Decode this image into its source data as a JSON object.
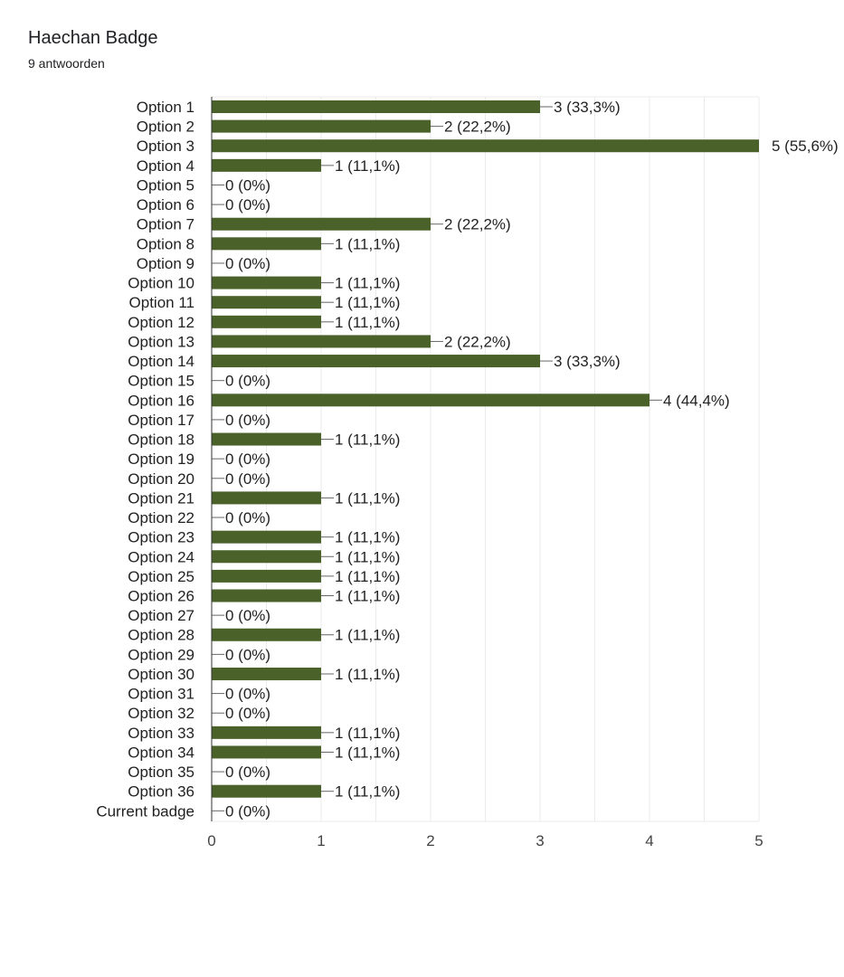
{
  "header": {
    "title": "Haechan Badge",
    "subtitle": "9 antwoorden"
  },
  "chart_data": {
    "type": "bar",
    "orientation": "horizontal",
    "bar_color": "#4a6129",
    "xlim": [
      0,
      5
    ],
    "x_ticks": [
      0,
      1,
      2,
      3,
      4,
      5
    ],
    "grid": true,
    "categories": [
      "Option 1",
      "Option 2",
      "Option 3",
      "Option 4",
      "Option 5",
      "Option 6",
      "Option 7",
      "Option 8",
      "Option 9",
      "Option 10",
      "Option 11",
      "Option 12",
      "Option 13",
      "Option 14",
      "Option 15",
      "Option 16",
      "Option 17",
      "Option 18",
      "Option 19",
      "Option 20",
      "Option 21",
      "Option 22",
      "Option 23",
      "Option 24",
      "Option 25",
      "Option 26",
      "Option 27",
      "Option 28",
      "Option 29",
      "Option 30",
      "Option 31",
      "Option 32",
      "Option 33",
      "Option 34",
      "Option 35",
      "Option 36",
      "Current badge"
    ],
    "values": [
      3,
      2,
      5,
      1,
      0,
      0,
      2,
      1,
      0,
      1,
      1,
      1,
      2,
      3,
      0,
      4,
      0,
      1,
      0,
      0,
      1,
      0,
      1,
      1,
      1,
      1,
      0,
      1,
      0,
      1,
      0,
      0,
      1,
      1,
      0,
      1,
      0
    ],
    "labels": [
      "3 (33,3%)",
      "2 (22,2%)",
      "5 (55,6%)",
      "1 (11,1%)",
      "0 (0%)",
      "0 (0%)",
      "2 (22,2%)",
      "1 (11,1%)",
      "0 (0%)",
      "1 (11,1%)",
      "1 (11,1%)",
      "1 (11,1%)",
      "2 (22,2%)",
      "3 (33,3%)",
      "0 (0%)",
      "4 (44,4%)",
      "0 (0%)",
      "1 (11,1%)",
      "0 (0%)",
      "0 (0%)",
      "1 (11,1%)",
      "0 (0%)",
      "1 (11,1%)",
      "1 (11,1%)",
      "1 (11,1%)",
      "1 (11,1%)",
      "0 (0%)",
      "1 (11,1%)",
      "0 (0%)",
      "1 (11,1%)",
      "0 (0%)",
      "0 (0%)",
      "1 (11,1%)",
      "1 (11,1%)",
      "0 (0%)",
      "1 (11,1%)",
      "0 (0%)"
    ]
  }
}
